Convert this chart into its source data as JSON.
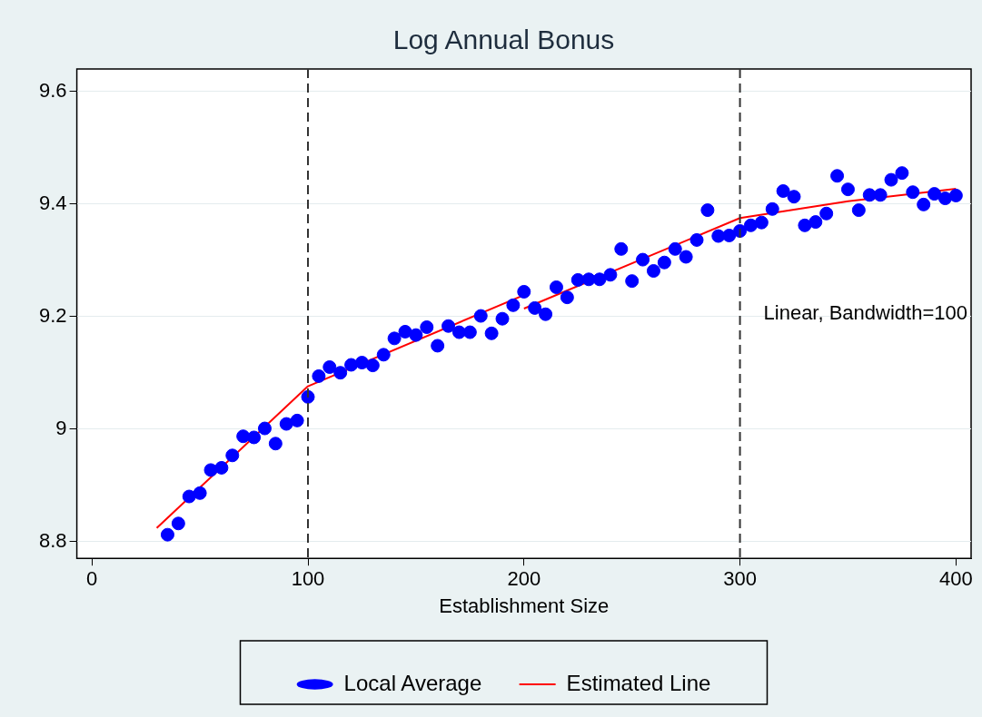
{
  "chart_data": {
    "type": "scatter",
    "title": "Log Annual Bonus",
    "xlabel": "Establishment Size",
    "xlim": [
      -7,
      407
    ],
    "xticks": [
      0,
      100,
      200,
      300,
      400
    ],
    "ylim": [
      8.77,
      9.64
    ],
    "yticks": [
      8.8,
      9,
      9.2,
      9.4,
      9.6
    ],
    "grid": "y",
    "legend": "bottom",
    "marker": "circle",
    "annotations": [
      "Linear, Bandwidth=100"
    ],
    "ref_lines": [
      {
        "axis": "x",
        "value": 100,
        "color": "#333333",
        "line_style": "dashed"
      },
      {
        "axis": "x",
        "value": 300,
        "color": "#333333",
        "line_style": "dashed"
      }
    ],
    "series": [
      {
        "name": "Local Average",
        "color": "#0000ff",
        "x": [
          35,
          40,
          45,
          50,
          55,
          60,
          65,
          70,
          75,
          80,
          85,
          90,
          95,
          100,
          105,
          110,
          115,
          120,
          125,
          130,
          135,
          140,
          145,
          150,
          155,
          160,
          165,
          170,
          175,
          180,
          185,
          190,
          195,
          200,
          205,
          210,
          215,
          220,
          225,
          230,
          235,
          240,
          245,
          250,
          255,
          260,
          265,
          270,
          275,
          280,
          285,
          290,
          295,
          300,
          305,
          310,
          315,
          320,
          325,
          330,
          335,
          340,
          345,
          350,
          355,
          360,
          365,
          370,
          375,
          380,
          385,
          390,
          395,
          400
        ],
        "values": [
          8.812,
          8.832,
          8.88,
          8.886,
          8.927,
          8.931,
          8.953,
          8.987,
          8.985,
          9.001,
          8.974,
          9.009,
          9.015,
          9.057,
          9.094,
          9.11,
          9.1,
          9.114,
          9.118,
          9.113,
          9.132,
          9.161,
          9.173,
          9.167,
          9.181,
          9.148,
          9.183,
          9.172,
          9.172,
          9.201,
          9.17,
          9.196,
          9.22,
          9.244,
          9.215,
          9.204,
          9.252,
          9.234,
          9.265,
          9.266,
          9.266,
          9.274,
          9.32,
          9.263,
          9.301,
          9.281,
          9.296,
          9.32,
          9.306,
          9.336,
          9.389,
          9.343,
          9.344,
          9.352,
          9.362,
          9.367,
          9.391,
          9.423,
          9.413,
          9.362,
          9.368,
          9.383,
          9.45,
          9.426,
          9.389,
          9.416,
          9.416,
          9.443,
          9.455,
          9.421,
          9.399,
          9.418,
          9.41,
          9.415
        ]
      },
      {
        "name": "Estimated Line",
        "type": "line",
        "color": "#ff0000",
        "marker": "none",
        "line_style": "solid",
        "x": [
          30,
          100,
          200
        ],
        "values": [
          8.824,
          9.076,
          9.238
        ]
      },
      {
        "type": "line",
        "color": "#ff0000",
        "marker": "none",
        "line_style": "solid",
        "x": [
          200,
          300,
          350,
          400
        ],
        "values": [
          9.214,
          9.375,
          9.405,
          9.427
        ]
      }
    ]
  }
}
